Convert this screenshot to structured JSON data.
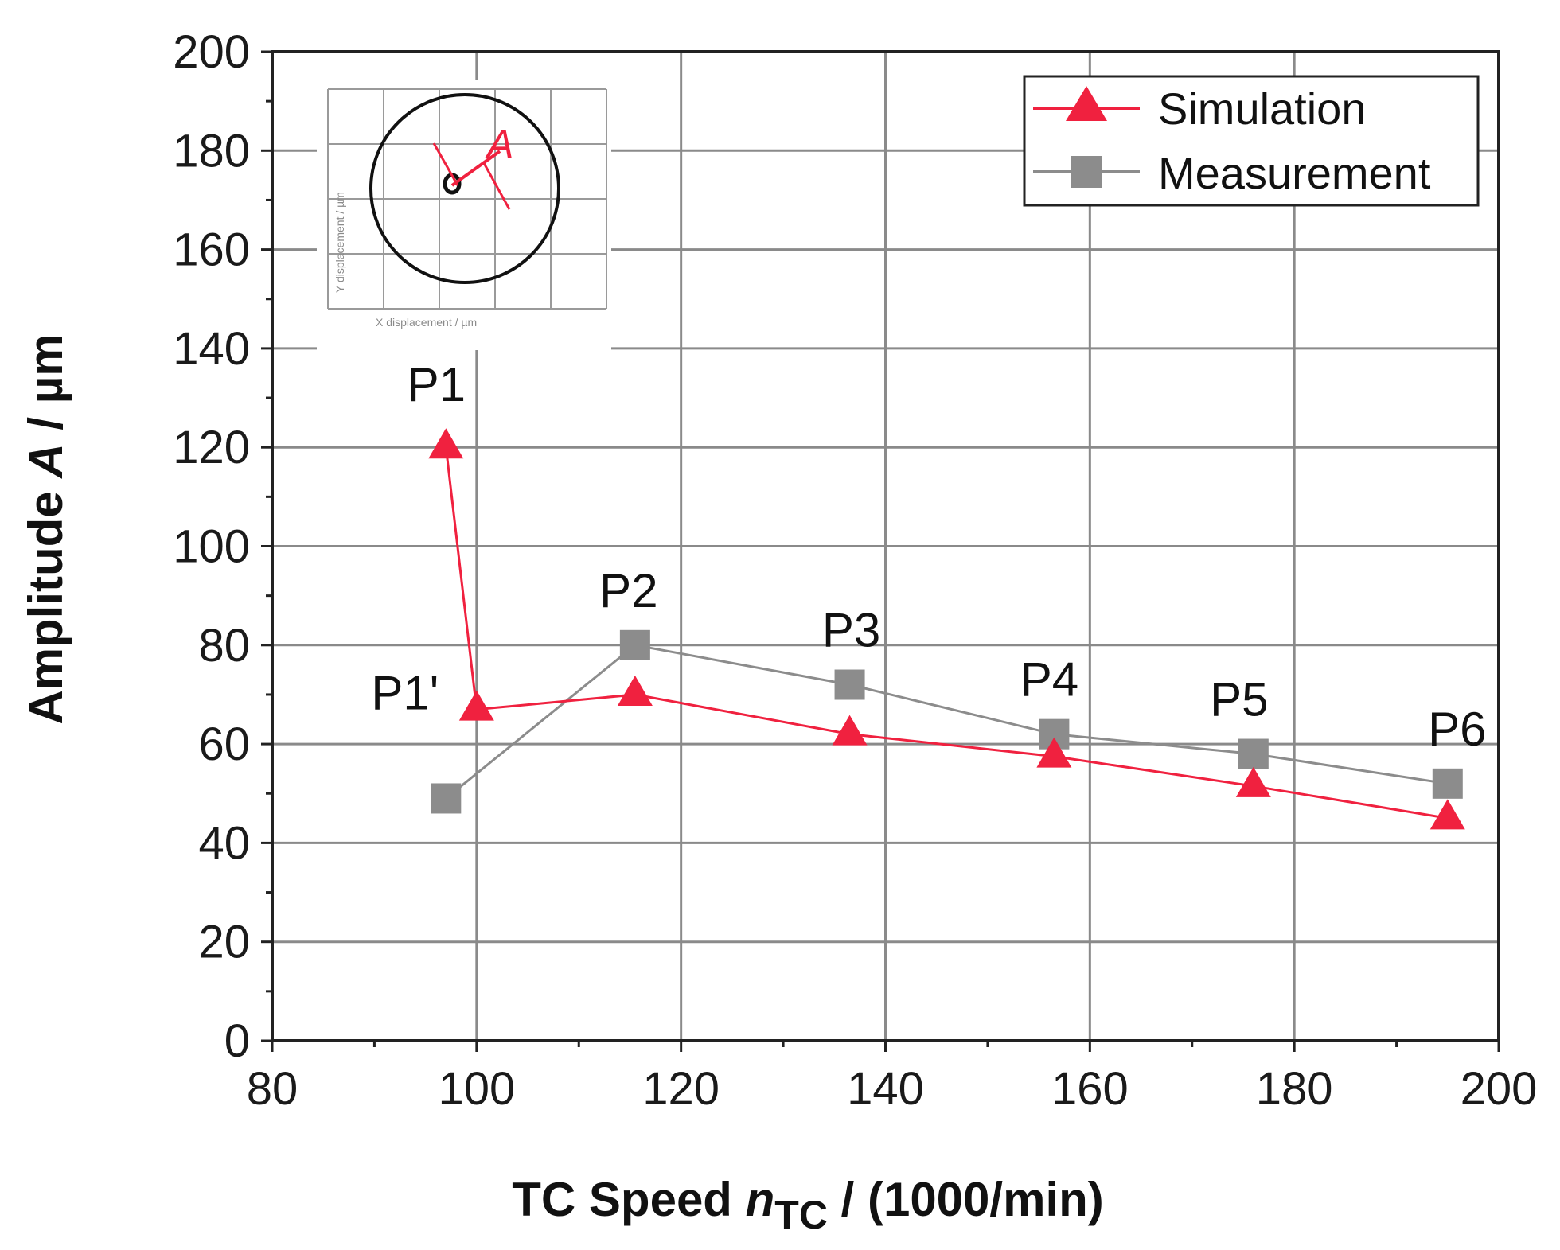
{
  "chart_data": {
    "type": "line",
    "xlabel": {
      "main": "TC Speed ",
      "var": "n",
      "sub": "TC",
      "rest": " / (1000/min)"
    },
    "ylabel": {
      "main": "Amplitude ",
      "var": "A",
      "rest": " / µm"
    },
    "xlim": [
      80,
      200
    ],
    "ylim": [
      0,
      200
    ],
    "xticks": [
      80,
      100,
      120,
      140,
      160,
      180,
      200
    ],
    "yticks": [
      0,
      20,
      40,
      60,
      80,
      100,
      120,
      140,
      160,
      180,
      200
    ],
    "grid": true,
    "legend_position": "top-right",
    "series": [
      {
        "name": "Simulation",
        "color": "#f0213f",
        "marker": "triangle",
        "x": [
          97,
          100,
          115.5,
          136.5,
          156.5,
          176,
          195
        ],
        "y": [
          120,
          67,
          70,
          62,
          57.5,
          51.5,
          45
        ]
      },
      {
        "name": "Measurement",
        "color": "#8c8c8c",
        "marker": "square",
        "x": [
          97,
          115.5,
          136.5,
          156.5,
          176,
          195
        ],
        "y": [
          49,
          80,
          72,
          62,
          58,
          52
        ]
      }
    ],
    "point_labels": [
      {
        "text": "P1",
        "x": 97,
        "y": 120
      },
      {
        "text": "P1'",
        "x": 100,
        "y": 67
      },
      {
        "text": "P2",
        "x": 115.5,
        "y": 80
      },
      {
        "text": "P3",
        "x": 136.5,
        "y": 72
      },
      {
        "text": "P4",
        "x": 156.5,
        "y": 62
      },
      {
        "text": "P5",
        "x": 176,
        "y": 58
      },
      {
        "text": "P6",
        "x": 195,
        "y": 52
      }
    ],
    "inset": {
      "annotation": "A",
      "xlabel": "X displacement / µm",
      "ylabel": "Y displacement / µm"
    }
  }
}
